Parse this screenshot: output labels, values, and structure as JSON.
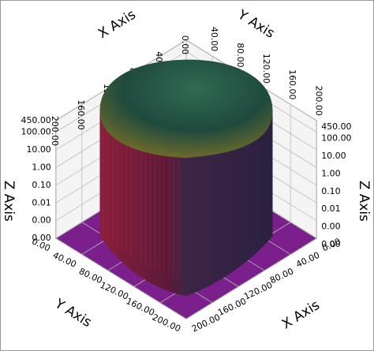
{
  "chart_data": {
    "type": "surface3d",
    "x_label": "X Axis",
    "y_label": "Y Axis",
    "z_label": "Z Axis",
    "xlim": [
      0,
      200
    ],
    "ylim": [
      0,
      200
    ],
    "zlim": [
      0.0001,
      450
    ],
    "zscale": "log",
    "xticks": [
      {
        "value": 0,
        "label": "0.00"
      },
      {
        "value": 40,
        "label": "40.00"
      },
      {
        "value": 80,
        "label": "80.00"
      },
      {
        "value": 120,
        "label": "120.00"
      },
      {
        "value": 160,
        "label": "160.00"
      },
      {
        "value": 200,
        "label": "200.00"
      }
    ],
    "yticks": [
      {
        "value": 0,
        "label": "0.00"
      },
      {
        "value": 40,
        "label": "40.00"
      },
      {
        "value": 80,
        "label": "80.00"
      },
      {
        "value": 120,
        "label": "120.00"
      },
      {
        "value": 160,
        "label": "160.00"
      },
      {
        "value": 200,
        "label": "200.00"
      }
    ],
    "zticks": [
      {
        "value": 0.0001,
        "label": "0.00"
      },
      {
        "value": 0.001,
        "label": "0.00"
      },
      {
        "value": 0.01,
        "label": "0.01"
      },
      {
        "value": 0.1,
        "label": "0.10"
      },
      {
        "value": 1,
        "label": "1.00"
      },
      {
        "value": 10,
        "label": "10.00"
      },
      {
        "value": 100,
        "label": "100.00"
      },
      {
        "value": 450,
        "label": "450.00"
      }
    ],
    "floor_color": "#7b1f8c",
    "grid": true
  }
}
